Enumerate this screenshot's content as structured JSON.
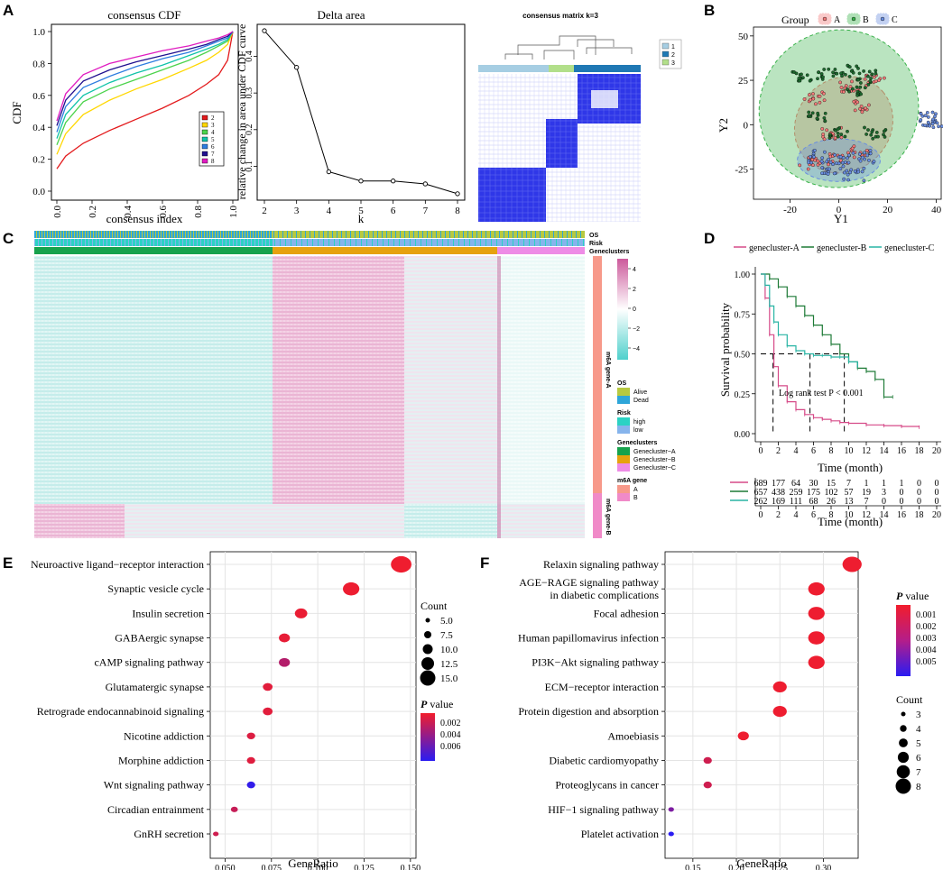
{
  "colors": {
    "hm_low": "#4fd0cc",
    "hm_mid": "#ffffff",
    "hm_high": "#cc5a9b",
    "cA": "#d64a88",
    "cB": "#1d7a36",
    "cC": "#28b4a4",
    "os_alive": "#b7c940",
    "os_dead": "#2ea6d9",
    "risk_high": "#2bd2c4",
    "risk_low": "#86b4ec",
    "gA": "#17a24c",
    "gB": "#e6a20e",
    "gC": "#ee8ce6",
    "m6A": "#f7998a",
    "m6B": "#f08ac8",
    "pv_low": "#f21d2c",
    "pv_high": "#2a1cf2"
  },
  "panels": {
    "A": "A",
    "B": "B",
    "C": "C",
    "D": "D",
    "E": "E",
    "F": "F"
  },
  "chart_data": [
    {
      "id": "A1",
      "type": "line",
      "title": "consensus CDF",
      "xlabel": "consensus index",
      "ylabel": "CDF",
      "xlim": [
        0,
        1
      ],
      "ylim": [
        0,
        1
      ],
      "xticks": [
        "0.0",
        "0.2",
        "0.4",
        "0.6",
        "0.8",
        "1.0"
      ],
      "yticks": [
        "0.0",
        "0.2",
        "0.4",
        "0.6",
        "0.8",
        "1.0"
      ],
      "legend": [
        "2",
        "3",
        "4",
        "5",
        "6",
        "7",
        "8"
      ],
      "series": [
        {
          "name": "2",
          "color": "#e31a1c",
          "x": [
            0,
            0.05,
            0.15,
            0.3,
            0.45,
            0.6,
            0.75,
            0.85,
            0.92,
            0.97,
            1
          ],
          "y": [
            0.14,
            0.22,
            0.3,
            0.38,
            0.45,
            0.52,
            0.6,
            0.67,
            0.73,
            0.82,
            1
          ]
        },
        {
          "name": "3",
          "color": "#ffd700",
          "x": [
            0,
            0.05,
            0.15,
            0.3,
            0.45,
            0.6,
            0.75,
            0.85,
            0.92,
            0.97,
            1
          ],
          "y": [
            0.23,
            0.36,
            0.48,
            0.57,
            0.64,
            0.7,
            0.77,
            0.82,
            0.87,
            0.92,
            1
          ]
        },
        {
          "name": "4",
          "color": "#4cd34c",
          "x": [
            0,
            0.05,
            0.15,
            0.3,
            0.45,
            0.6,
            0.75,
            0.85,
            0.92,
            0.97,
            1
          ],
          "y": [
            0.29,
            0.43,
            0.56,
            0.64,
            0.7,
            0.76,
            0.82,
            0.87,
            0.91,
            0.94,
            1
          ]
        },
        {
          "name": "5",
          "color": "#10c3a8",
          "x": [
            0,
            0.05,
            0.15,
            0.3,
            0.45,
            0.6,
            0.75,
            0.85,
            0.92,
            0.97,
            1
          ],
          "y": [
            0.33,
            0.48,
            0.6,
            0.68,
            0.74,
            0.79,
            0.85,
            0.89,
            0.92,
            0.95,
            1
          ]
        },
        {
          "name": "6",
          "color": "#2e7de0",
          "x": [
            0,
            0.05,
            0.15,
            0.3,
            0.45,
            0.6,
            0.75,
            0.85,
            0.92,
            0.97,
            1
          ],
          "y": [
            0.37,
            0.53,
            0.65,
            0.72,
            0.78,
            0.83,
            0.87,
            0.91,
            0.94,
            0.96,
            1
          ]
        },
        {
          "name": "7",
          "color": "#20108f",
          "x": [
            0,
            0.05,
            0.15,
            0.3,
            0.45,
            0.6,
            0.75,
            0.85,
            0.92,
            0.97,
            1
          ],
          "y": [
            0.41,
            0.57,
            0.69,
            0.76,
            0.81,
            0.85,
            0.89,
            0.92,
            0.95,
            0.97,
            1
          ]
        },
        {
          "name": "8",
          "color": "#e01cc0",
          "x": [
            0,
            0.05,
            0.15,
            0.3,
            0.45,
            0.6,
            0.75,
            0.85,
            0.92,
            0.97,
            1
          ],
          "y": [
            0.44,
            0.61,
            0.73,
            0.8,
            0.84,
            0.88,
            0.91,
            0.94,
            0.96,
            0.98,
            1
          ]
        }
      ]
    },
    {
      "id": "A2",
      "type": "line",
      "title": "Delta area",
      "xlabel": "k",
      "ylabel": "relative change in area under CDF curve",
      "x": [
        2,
        3,
        4,
        5,
        6,
        7,
        8
      ],
      "y": [
        0.47,
        0.37,
        0.085,
        0.06,
        0.06,
        0.052,
        0.025
      ],
      "xlim": [
        2,
        8
      ],
      "ylim": [
        0.015,
        0.48
      ],
      "xticks": [
        "2",
        "3",
        "4",
        "5",
        "6",
        "7",
        "8"
      ],
      "yticks": [
        "0.1",
        "0.2",
        "0.3",
        "0.4"
      ],
      "ytick_values": [
        0.1,
        0.2,
        0.3,
        0.4
      ]
    },
    {
      "id": "A3",
      "type": "heatmap",
      "title": "consensus matrix k=3",
      "legend": [
        "1",
        "2",
        "3"
      ],
      "cluster_colors": [
        "#a6cee3",
        "#1f78b4",
        "#b2df8a"
      ]
    },
    {
      "id": "B",
      "type": "scatter",
      "title": "Group",
      "legend": [
        "A",
        "B",
        "C"
      ],
      "xlabel": "Y1",
      "ylabel": "Y2",
      "xlim": [
        -35,
        42
      ],
      "ylim": [
        -42,
        55
      ],
      "xticks": [
        "-20",
        "0",
        "20",
        "40"
      ],
      "xtick_values": [
        -20,
        0,
        20,
        40
      ],
      "yticks": [
        "-25",
        "0",
        "25",
        "50"
      ],
      "ytick_values": [
        -25,
        0,
        25,
        50
      ],
      "groups": [
        {
          "name": "A",
          "color": "#f47a7a",
          "cluster": [
            [
              -3,
              -5
            ],
            [
              10,
              10
            ],
            [
              -10,
              15
            ],
            [
              0,
              -20
            ],
            [
              5,
              22
            ],
            [
              15,
              25
            ],
            [
              -12,
              -22
            ],
            [
              8,
              -15
            ]
          ],
          "ellipse": {
            "cx": 2,
            "cy": 0,
            "rx": 21,
            "ry": 26,
            "rot": -40
          }
        },
        {
          "name": "B",
          "color": "#39b24a",
          "cluster": [
            [
              -15,
              28
            ],
            [
              -5,
              28
            ],
            [
              5,
              30
            ],
            [
              8,
              20
            ],
            [
              12,
              27
            ],
            [
              0,
              -5
            ],
            [
              -8,
              5
            ],
            [
              15,
              -5
            ]
          ],
          "ellipse": {
            "cx": 0,
            "cy": 9,
            "rx": 33,
            "ry": 44,
            "rot": -35
          }
        },
        {
          "name": "C",
          "color": "#6a8ee0",
          "cluster": [
            [
              -8,
              -18
            ],
            [
              0,
              -20
            ],
            [
              10,
              -18
            ],
            [
              -3,
              -25
            ],
            [
              6,
              -28
            ],
            [
              37,
              4
            ],
            [
              38,
              2
            ]
          ],
          "ellipse": {
            "cx": 0,
            "cy": -20,
            "rx": 17,
            "ry": 12,
            "rot": 0
          }
        }
      ]
    },
    {
      "id": "C",
      "type": "heatmap",
      "tracks": [
        "OS",
        "Risk",
        "Geneclusters"
      ],
      "row_groups": [
        "m6A gene-A",
        "m6A gene-B"
      ],
      "scale": {
        "ticks": [
          "4",
          "2",
          "0",
          "-2",
          "-4"
        ]
      },
      "legend_sections": [
        {
          "title": "OS",
          "items": [
            {
              "label": "Alive",
              "color": "#b7c940"
            },
            {
              "label": "Dead",
              "color": "#2ea6d9"
            }
          ]
        },
        {
          "title": "Risk",
          "items": [
            {
              "label": "high",
              "color": "#2bd2c4"
            },
            {
              "label": "low",
              "color": "#86b4ec"
            }
          ]
        },
        {
          "title": "Geneclusters",
          "items": [
            {
              "label": "Genecluster-A",
              "color": "#17a24c"
            },
            {
              "label": "Genecluster-B",
              "color": "#e6a20e"
            },
            {
              "label": "Genecluster-C",
              "color": "#ee8ce6"
            }
          ]
        },
        {
          "title": "m6A gene",
          "items": [
            {
              "label": "A",
              "color": "#f7998a"
            },
            {
              "label": "B",
              "color": "#f08ac8"
            }
          ]
        }
      ]
    },
    {
      "id": "D",
      "type": "line",
      "subtype": "kaplan-meier",
      "xlabel": "Time (month)",
      "ylabel": "Survival probability",
      "xlim": [
        0,
        20
      ],
      "ylim": [
        0,
        1
      ],
      "xticks": [
        "0",
        "2",
        "4",
        "6",
        "8",
        "10",
        "12",
        "14",
        "16",
        "18",
        "20"
      ],
      "yticks": [
        "0.00",
        "0.25",
        "0.50",
        "0.75",
        "1.00"
      ],
      "annotation": "Log rank test P < 0.001",
      "series": [
        {
          "name": "genecluster-A",
          "color": "#d64a88",
          "t": [
            0,
            0.5,
            1,
            1.5,
            2,
            3,
            4,
            5,
            6,
            7,
            8,
            9,
            10,
            12,
            14,
            16,
            18
          ],
          "s": [
            1,
            0.85,
            0.62,
            0.42,
            0.3,
            0.2,
            0.15,
            0.12,
            0.1,
            0.09,
            0.08,
            0.07,
            0.065,
            0.055,
            0.05,
            0.045,
            0.04
          ]
        },
        {
          "name": "genecluster-B",
          "color": "#1d7a36",
          "t": [
            0,
            1,
            2,
            3,
            4,
            5,
            6,
            7,
            8,
            9,
            10,
            11,
            12,
            13,
            14,
            15
          ],
          "s": [
            1,
            0.97,
            0.92,
            0.86,
            0.8,
            0.74,
            0.68,
            0.62,
            0.56,
            0.5,
            0.45,
            0.41,
            0.39,
            0.34,
            0.23,
            0.23
          ]
        },
        {
          "name": "genecluster-C",
          "color": "#28b4a4",
          "t": [
            0,
            0.5,
            1,
            1.5,
            2,
            3,
            4,
            5,
            6,
            7,
            8,
            9,
            10,
            11
          ],
          "s": [
            1,
            0.93,
            0.8,
            0.7,
            0.62,
            0.55,
            0.52,
            0.5,
            0.49,
            0.49,
            0.48,
            0.48,
            0.45,
            0.42
          ]
        }
      ],
      "risk_table": {
        "times": [
          "0",
          "2",
          "4",
          "6",
          "8",
          "10",
          "12",
          "14",
          "16",
          "18",
          "20"
        ],
        "rows": [
          {
            "name": "genecluster-A",
            "values": [
              "689",
              "177",
              "64",
              "30",
              "15",
              "7",
              "1",
              "1",
              "1",
              "0",
              "0"
            ]
          },
          {
            "name": "genecluster-B",
            "values": [
              "657",
              "438",
              "259",
              "175",
              "102",
              "57",
              "19",
              "3",
              "0",
              "0",
              "0"
            ]
          },
          {
            "name": "genecluster-C",
            "values": [
              "262",
              "169",
              "111",
              "68",
              "26",
              "13",
              "7",
              "0",
              "0",
              "0",
              "0"
            ]
          }
        ],
        "xlabel": "Time (month)"
      }
    },
    {
      "id": "E",
      "type": "scatter",
      "subtype": "dotplot",
      "xlabel": "GeneRatio",
      "xlim": [
        0.042,
        0.153
      ],
      "xticks": [
        "0.050",
        "0.075",
        "0.100",
        "0.125",
        "0.150"
      ],
      "xtick_values": [
        0.05,
        0.075,
        0.1,
        0.125,
        0.15
      ],
      "categories": [
        "Neuroactive ligand−receptor interaction",
        "Synaptic vesicle cycle",
        "Insulin secretion",
        "GABAergic synapse",
        "cAMP signaling pathway",
        "Glutamatergic synapse",
        "Retrograde endocannabinoid signaling",
        "Nicotine addiction",
        "Morphine addiction",
        "Wnt signaling pathway",
        "Circadian entrainment",
        "GnRH secretion"
      ],
      "gene_ratio": [
        0.145,
        0.118,
        0.091,
        0.082,
        0.082,
        0.073,
        0.073,
        0.064,
        0.064,
        0.064,
        0.055,
        0.045
      ],
      "count": [
        16,
        13,
        10,
        9,
        9,
        8,
        8,
        7,
        7,
        7,
        6,
        5
      ],
      "p_value": [
        0.0003,
        0.0004,
        0.0005,
        0.0006,
        0.0025,
        0.0008,
        0.0008,
        0.001,
        0.0009,
        0.0072,
        0.0018,
        0.0015
      ],
      "legend": {
        "count_title": "Count",
        "count_labels": [
          "5.0",
          "7.5",
          "10.0",
          "12.5",
          "15.0"
        ],
        "count_values": [
          5,
          7.5,
          10,
          12.5,
          15
        ],
        "p_title": "P",
        "p_title_suffix": " value",
        "p_labels": [
          "0.002",
          "0.004",
          "0.006"
        ],
        "p_range": [
          0.0002,
          0.0075
        ]
      }
    },
    {
      "id": "F",
      "type": "scatter",
      "subtype": "dotplot",
      "xlabel": "GeneRatio",
      "xlim": [
        0.118,
        0.34
      ],
      "xticks": [
        "0.15",
        "0.20",
        "0.25",
        "0.30"
      ],
      "xtick_values": [
        0.15,
        0.2,
        0.25,
        0.3
      ],
      "categories": [
        "Relaxin signaling pathway",
        "AGE−RAGE signaling pathway\nin diabetic complications",
        "Focal adhesion",
        "Human papillomavirus infection",
        "PI3K−Akt signaling pathway",
        "ECM−receptor interaction",
        "Protein digestion and absorption",
        "Amoebiasis",
        "Diabetic cardiomyopathy",
        "Proteoglycans in cancer",
        "HIF−1 signaling pathway",
        "Platelet activation"
      ],
      "gene_ratio": [
        0.333,
        0.292,
        0.292,
        0.292,
        0.292,
        0.25,
        0.25,
        0.208,
        0.167,
        0.167,
        0.125,
        0.125
      ],
      "count": [
        8,
        7,
        7,
        7,
        7,
        6,
        6,
        5,
        4,
        4,
        3,
        3
      ],
      "p_value": [
        0.0003,
        0.0003,
        0.0003,
        0.0003,
        0.0003,
        0.0003,
        0.0003,
        0.0003,
        0.0012,
        0.0012,
        0.0035,
        0.0058
      ],
      "legend": {
        "count_title": "Count",
        "count_labels": [
          "3",
          "4",
          "5",
          "6",
          "7",
          "8"
        ],
        "count_values": [
          3,
          4,
          5,
          6,
          7,
          8
        ],
        "p_title": "P",
        "p_title_suffix": " value",
        "p_labels": [
          "0.001",
          "0.002",
          "0.003",
          "0.004",
          "0.005"
        ],
        "p_range": [
          0.0002,
          0.0058
        ]
      }
    }
  ]
}
